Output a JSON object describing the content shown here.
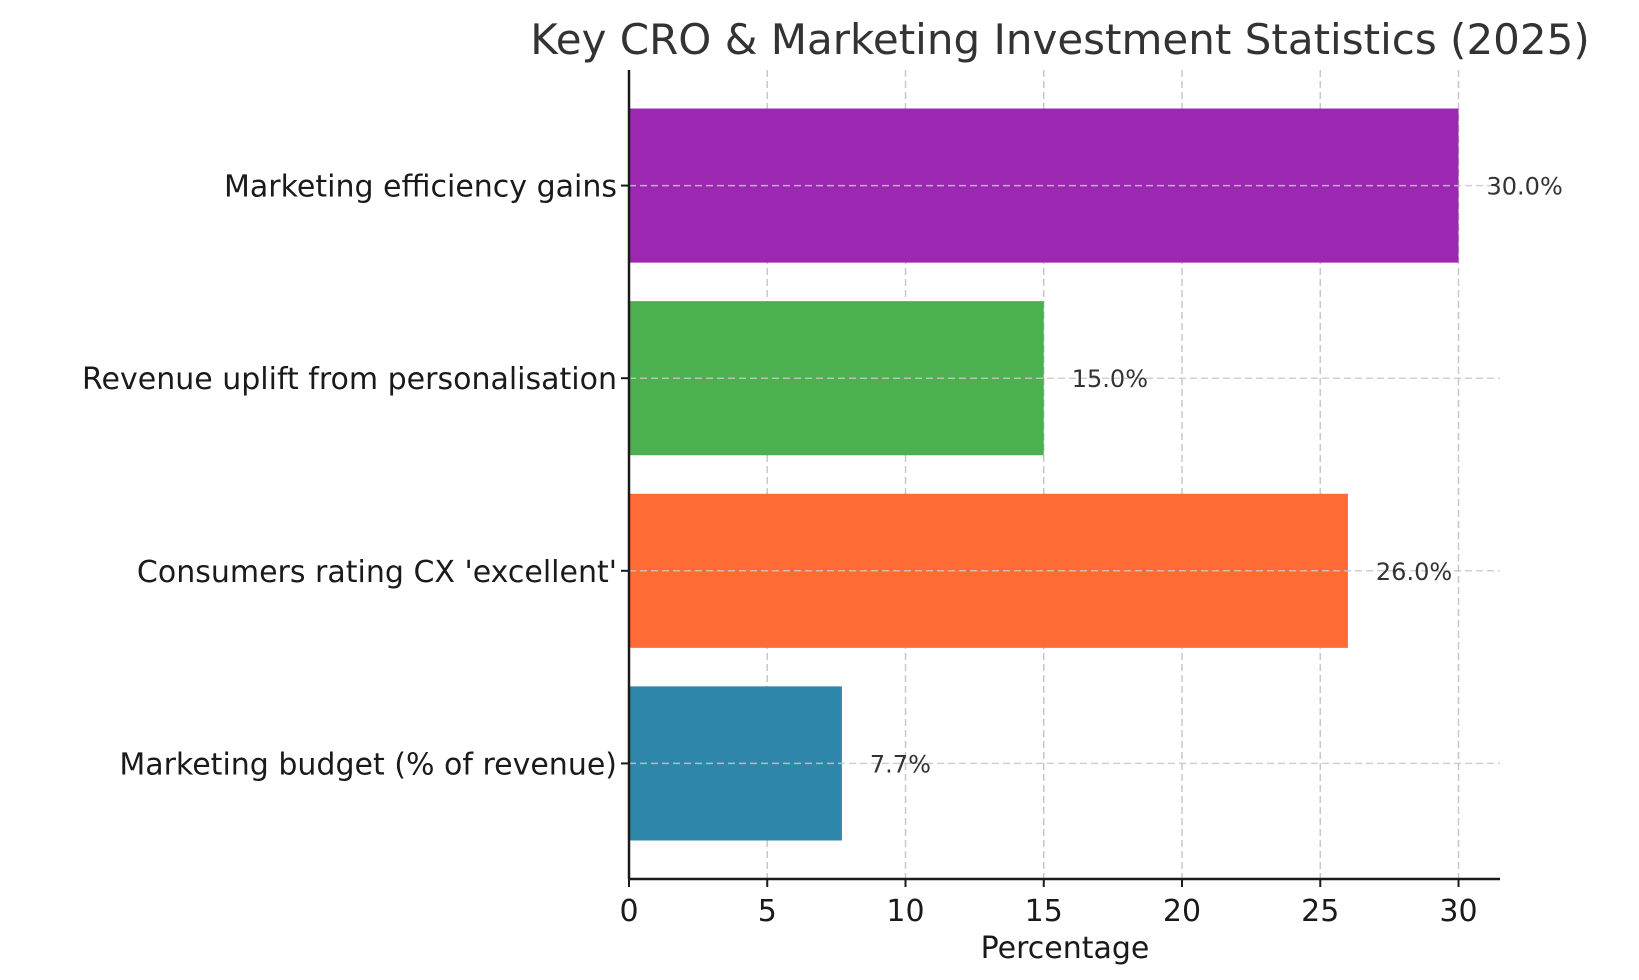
{
  "chart_data": {
    "type": "bar",
    "orientation": "horizontal",
    "title": "Key CRO & Marketing Investment Statistics (2025)",
    "xlabel": "Percentage",
    "ylabel": "",
    "categories": [
      "Marketing budget (% of revenue)",
      "Consumers rating CX 'excellent'",
      "Revenue uplift from personalisation",
      "Marketing efficiency gains"
    ],
    "values": [
      7.7,
      26.0,
      15.0,
      30.0
    ],
    "value_labels": [
      "7.7%",
      "26.0%",
      "15.0%",
      "30.0%"
    ],
    "colors": [
      "#2E86AB",
      "#FF6B35",
      "#4CAF50",
      "#9C27B0"
    ],
    "xlim": [
      0,
      31.5
    ],
    "xticks": [
      0,
      5,
      10,
      15,
      20,
      25,
      30
    ],
    "xtick_labels": [
      "0",
      "5",
      "10",
      "15",
      "20",
      "25",
      "30"
    ],
    "grid": true,
    "grid_style": "dashed",
    "legend": "none"
  }
}
